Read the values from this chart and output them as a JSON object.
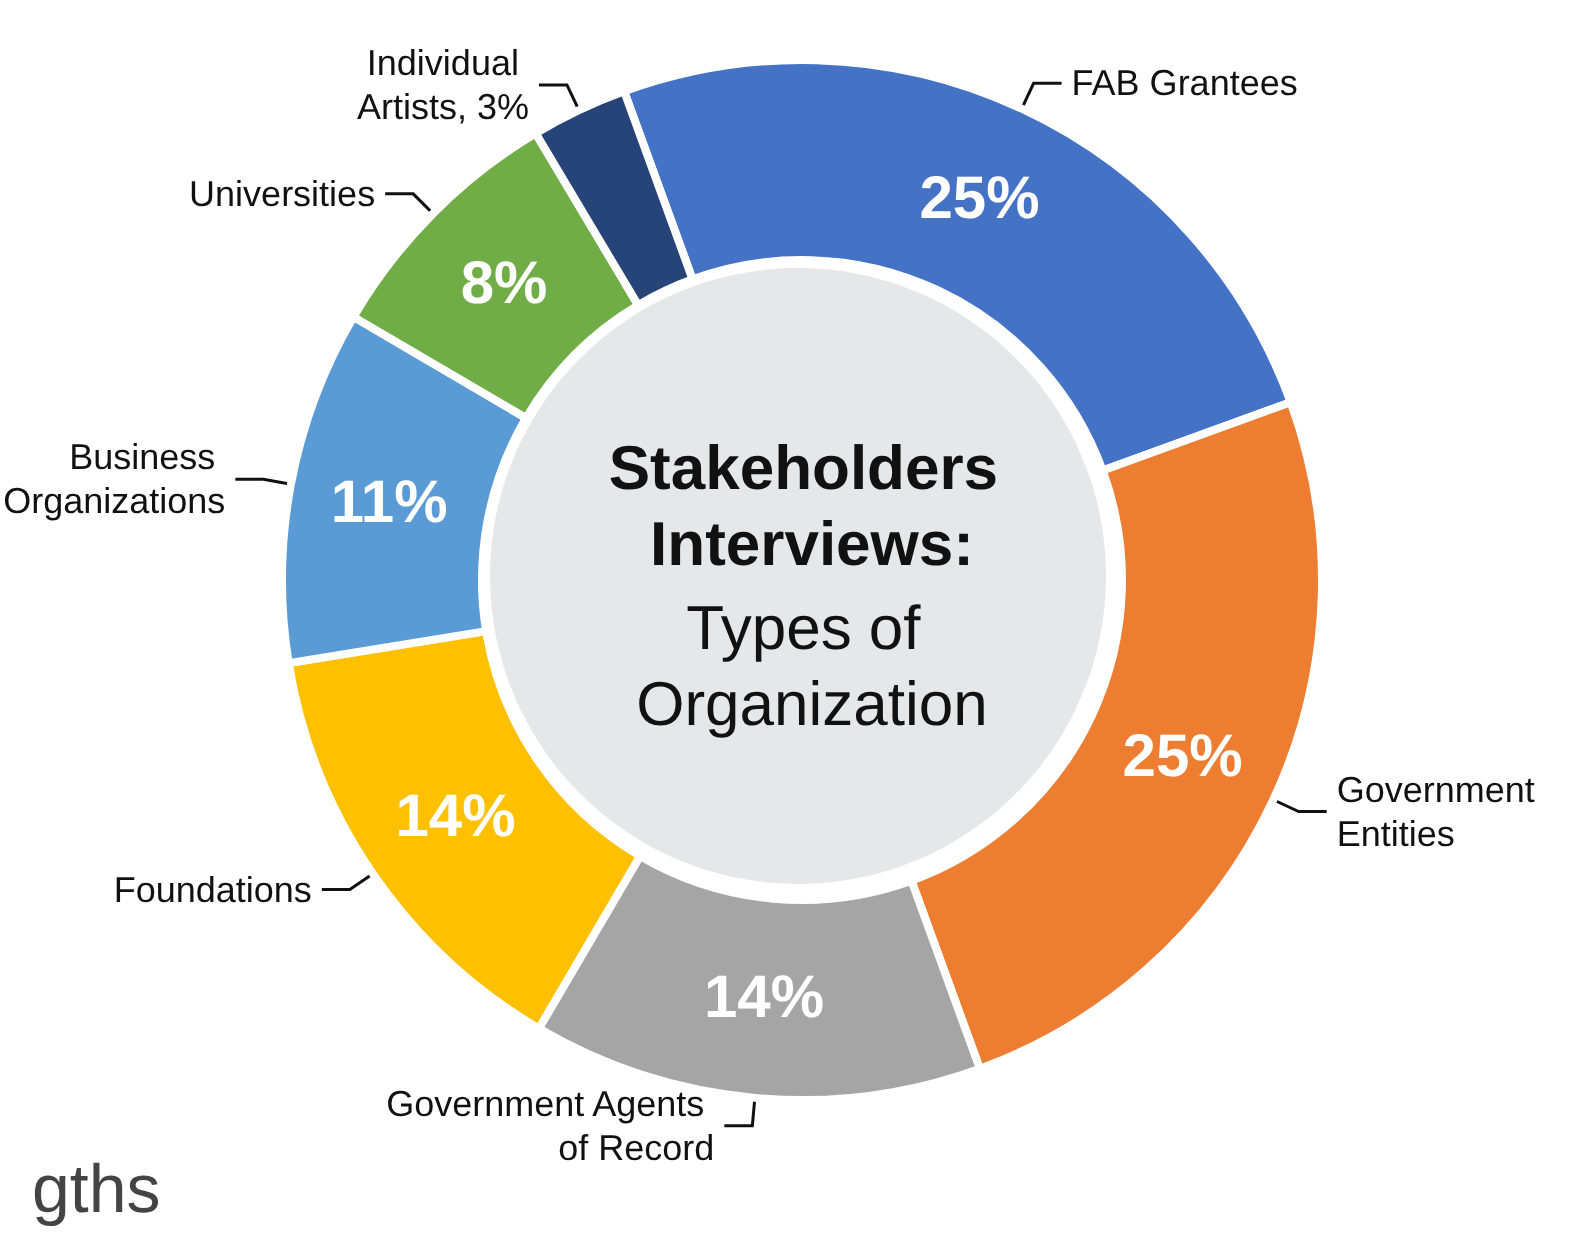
{
  "chart_data": {
    "type": "donut",
    "title": "Stakeholders Interviews:",
    "subtitle": "Types of Organization",
    "categories": [
      "FAB Grantees",
      "Government Entities",
      "Government Agents of Record",
      "Foundations",
      "Business Organizations",
      "Universities",
      "Individual Artists, 3%"
    ],
    "values": [
      25,
      25,
      14,
      14,
      11,
      8,
      3
    ],
    "value_labels": [
      "25%",
      "25%",
      "14%",
      "14%",
      "11%",
      "8%",
      null
    ],
    "colors": [
      "#4472c4",
      "#ed7d31",
      "#a5a5a5",
      "#ffc000",
      "#5b9bd5",
      "#70ad47",
      "#264478"
    ],
    "annotations": [
      "gths"
    ],
    "legend": false
  }
}
